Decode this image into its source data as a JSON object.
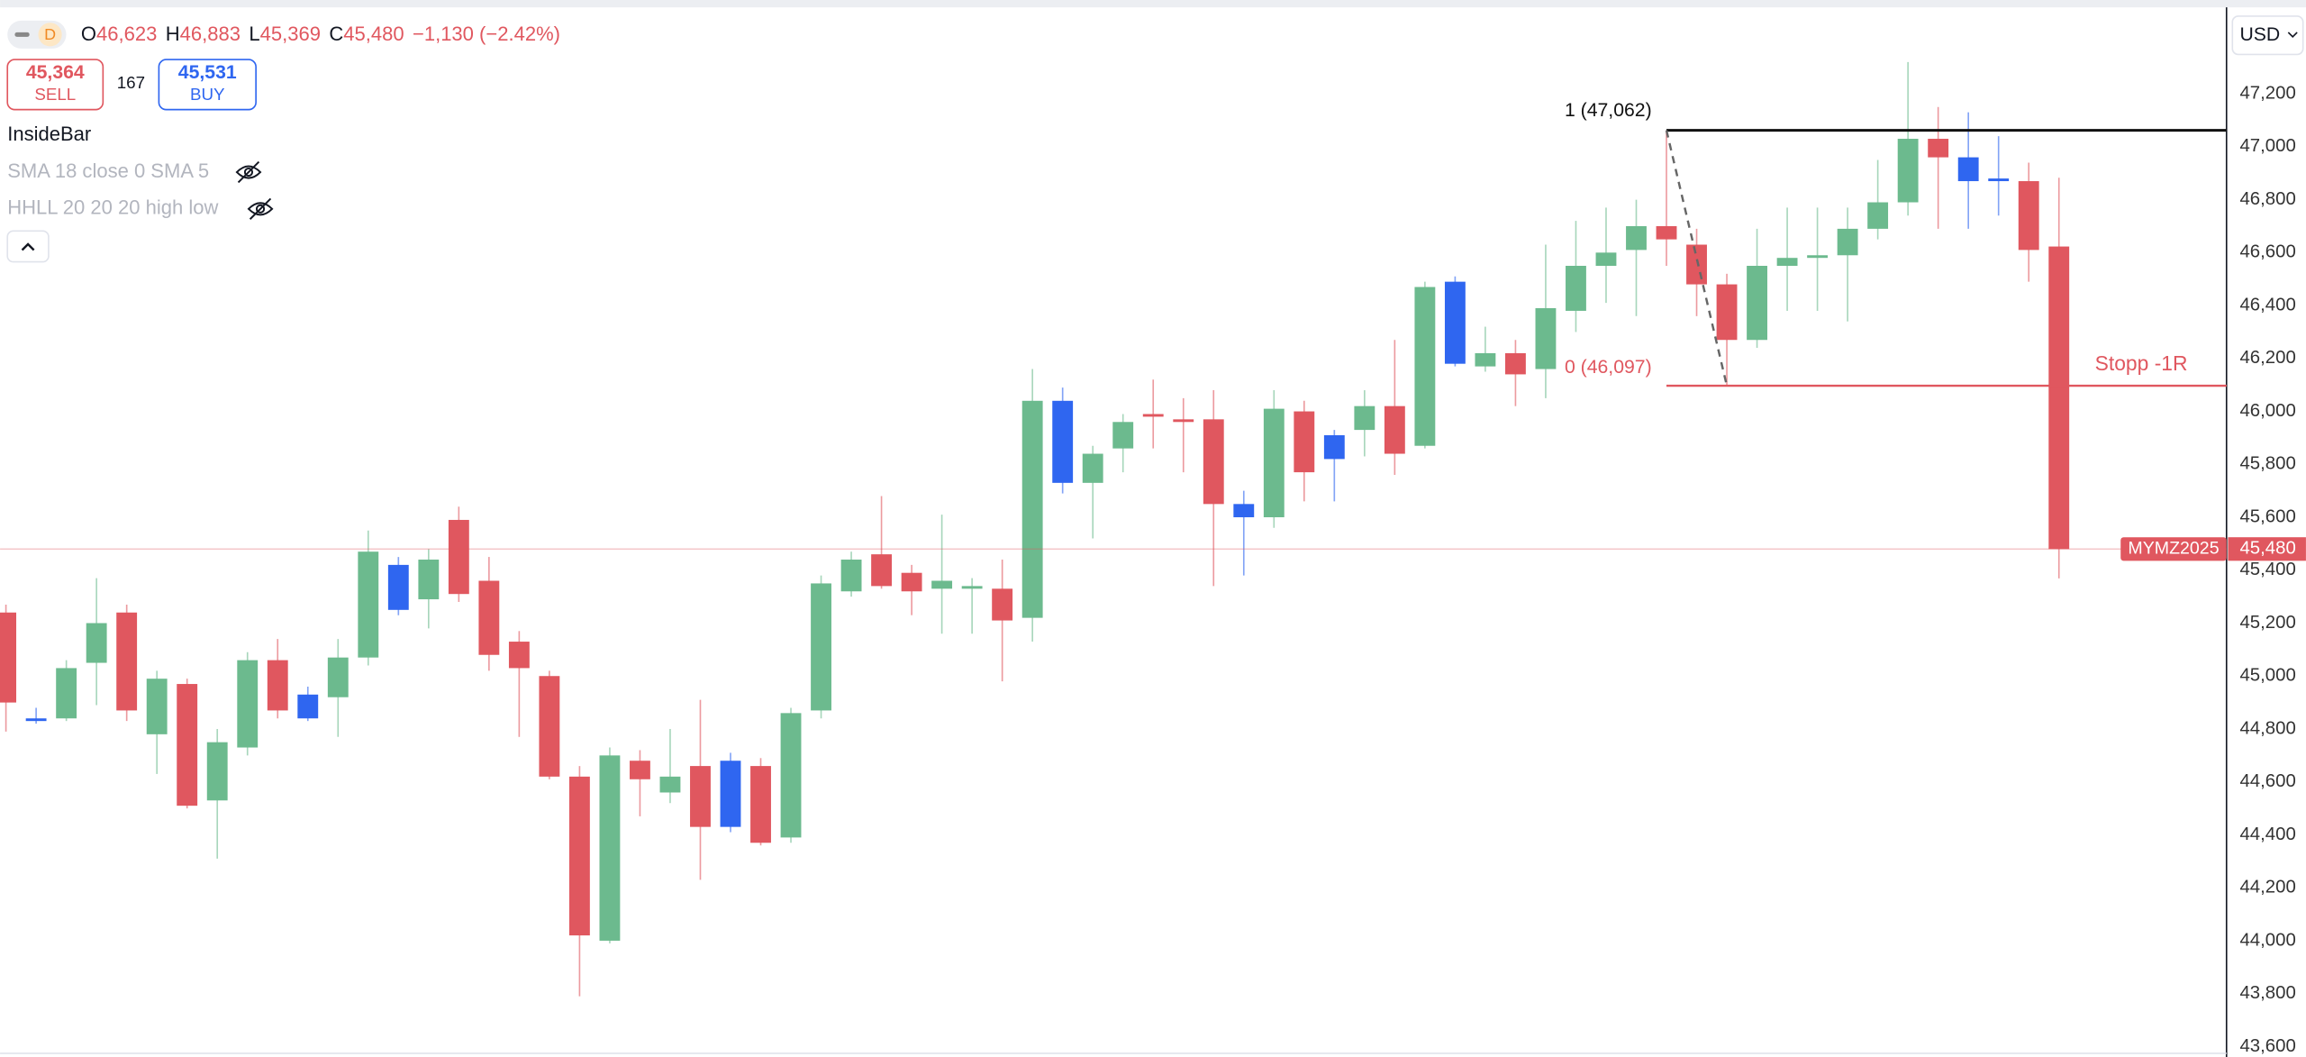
{
  "header": {
    "interval": "D",
    "ohlc": [
      {
        "label": "O",
        "value": "46,623"
      },
      {
        "label": "H",
        "value": "46,883"
      },
      {
        "label": "L",
        "value": "45,369"
      },
      {
        "label": "C",
        "value": "45,480"
      }
    ],
    "change": "−1,130 (−2.42%)",
    "sell": {
      "price": "45,364",
      "label": "SELL"
    },
    "spread": "167",
    "buy": {
      "price": "45,531",
      "label": "BUY"
    },
    "indicators": [
      "InsideBar",
      "SMA 18 close 0 SMA 5",
      "HHLL 20 20 20 high low"
    ],
    "currency": "USD"
  },
  "chart_data": {
    "type": "candlestick",
    "open": [
      45240,
      44840,
      44840,
      45050,
      45240,
      44780,
      44970,
      44530,
      44730,
      45060,
      44930,
      44920,
      45070,
      45420,
      45290,
      45590,
      45360,
      45130,
      45000,
      44620,
      44000,
      44680,
      44560,
      44660,
      44680,
      44660,
      44390,
      44870,
      45320,
      45460,
      45390,
      45330,
      45330,
      45330,
      45220,
      46040,
      45730,
      45860,
      45990,
      45970,
      45970,
      45650,
      45600,
      46000,
      45820,
      45930,
      46020,
      45870,
      46490,
      46170,
      46220,
      46160,
      46380,
      46550,
      46610,
      46700,
      46630,
      46480,
      46270,
      46550,
      46580,
      46590,
      46690,
      46790,
      47030,
      46960,
      46880,
      46870,
      46623
    ],
    "high": [
      45270,
      44880,
      45060,
      45370,
      45270,
      45020,
      44990,
      44800,
      45090,
      45140,
      44960,
      45140,
      45550,
      45450,
      45480,
      45640,
      45450,
      45170,
      45020,
      44660,
      44730,
      44720,
      44800,
      44910,
      44710,
      44690,
      44880,
      45380,
      45470,
      45680,
      45420,
      45610,
      45370,
      45440,
      46160,
      46090,
      45870,
      45990,
      46120,
      46050,
      46080,
      45700,
      46080,
      46040,
      45930,
      46080,
      46270,
      46490,
      46510,
      46320,
      46270,
      46630,
      46720,
      46770,
      46800,
      47062,
      46690,
      46520,
      46690,
      46770,
      46770,
      46770,
      46950,
      47320,
      47150,
      47130,
      47040,
      46940,
      46883
    ],
    "low": [
      44790,
      44820,
      44830,
      44890,
      44830,
      44630,
      44500,
      44310,
      44700,
      44840,
      44830,
      44770,
      45040,
      45230,
      45180,
      45280,
      45020,
      44770,
      44610,
      43790,
      43990,
      44470,
      44520,
      44230,
      44410,
      44360,
      44370,
      44840,
      45300,
      45330,
      45230,
      45160,
      45160,
      44980,
      45130,
      45690,
      45520,
      45770,
      45860,
      45770,
      45340,
      45380,
      45560,
      45660,
      45660,
      45830,
      45760,
      45860,
      46170,
      46150,
      46020,
      46050,
      46300,
      46410,
      46360,
      46550,
      46360,
      46097,
      46240,
      46380,
      46380,
      46340,
      46650,
      46740,
      46690,
      46690,
      46740,
      46490,
      45369
    ],
    "close": [
      44900,
      44830,
      45030,
      45200,
      44870,
      44990,
      44510,
      44750,
      45060,
      44870,
      44840,
      45070,
      45470,
      45250,
      45440,
      45310,
      45080,
      45030,
      44620,
      44020,
      44700,
      44610,
      44620,
      44430,
      44430,
      44370,
      44860,
      45350,
      45440,
      45340,
      45320,
      45360,
      45340,
      45210,
      46040,
      45730,
      45840,
      45960,
      45980,
      45960,
      45650,
      45600,
      46010,
      45770,
      45910,
      46020,
      45840,
      46470,
      46180,
      46220,
      46140,
      46390,
      46550,
      46600,
      46700,
      46650,
      46480,
      46270,
      46550,
      46580,
      46590,
      46690,
      46790,
      47030,
      46960,
      46870,
      46870,
      46610,
      45480
    ],
    "colors": [
      "#e0575f",
      "#2f66f0",
      "#6cba8e",
      "#6cba8e",
      "#e0575f",
      "#6cba8e",
      "#e0575f",
      "#6cba8e",
      "#6cba8e",
      "#e0575f",
      "#2f66f0",
      "#6cba8e",
      "#6cba8e",
      "#2f66f0",
      "#6cba8e",
      "#e0575f",
      "#e0575f",
      "#e0575f",
      "#e0575f",
      "#e0575f",
      "#6cba8e",
      "#e0575f",
      "#6cba8e",
      "#e0575f",
      "#2f66f0",
      "#e0575f",
      "#6cba8e",
      "#6cba8e",
      "#6cba8e",
      "#e0575f",
      "#e0575f",
      "#6cba8e",
      "#6cba8e",
      "#e0575f",
      "#6cba8e",
      "#2f66f0",
      "#6cba8e",
      "#6cba8e",
      "#e0575f",
      "#e0575f",
      "#e0575f",
      "#2f66f0",
      "#6cba8e",
      "#e0575f",
      "#2f66f0",
      "#6cba8e",
      "#e0575f",
      "#6cba8e",
      "#2f66f0",
      "#6cba8e",
      "#e0575f",
      "#6cba8e",
      "#6cba8e",
      "#6cba8e",
      "#6cba8e",
      "#e0575f",
      "#e0575f",
      "#e0575f",
      "#6cba8e",
      "#6cba8e",
      "#6cba8e",
      "#6cba8e",
      "#6cba8e",
      "#6cba8e",
      "#e0575f",
      "#2f66f0",
      "#2f66f0",
      "#e0575f",
      "#e0575f"
    ],
    "ylim": [
      43580,
      47510
    ],
    "yticks": [
      {
        "value": 43600,
        "label": "43,600"
      },
      {
        "value": 43800,
        "label": "43,800"
      },
      {
        "value": 44000,
        "label": "44,000"
      },
      {
        "value": 44200,
        "label": "44,200"
      },
      {
        "value": 44400,
        "label": "44,400"
      },
      {
        "value": 44600,
        "label": "44,600"
      },
      {
        "value": 44800,
        "label": "44,800"
      },
      {
        "value": 45000,
        "label": "45,000"
      },
      {
        "value": 45200,
        "label": "45,200"
      },
      {
        "value": 45400,
        "label": "45,400"
      },
      {
        "value": 45600,
        "label": "45,600"
      },
      {
        "value": 45800,
        "label": "45,800"
      },
      {
        "value": 46000,
        "label": "46,000"
      },
      {
        "value": 46200,
        "label": "46,200"
      },
      {
        "value": 46400,
        "label": "46,400"
      },
      {
        "value": 46600,
        "label": "46,600"
      },
      {
        "value": 46800,
        "label": "46,800"
      },
      {
        "value": 47000,
        "label": "47,000"
      },
      {
        "value": 47200,
        "label": "47,200"
      }
    ],
    "grid": false,
    "last_price": {
      "value": 45480,
      "label": "45,480",
      "symbol": "MYMZ2025"
    },
    "levels": [
      {
        "value": 47062,
        "label": "1 (47,062)",
        "color": "#111111"
      },
      {
        "value": 46097,
        "label": "0 (46,097)",
        "color": "#e0575f"
      }
    ],
    "stop_label": "Stopp -1R"
  }
}
